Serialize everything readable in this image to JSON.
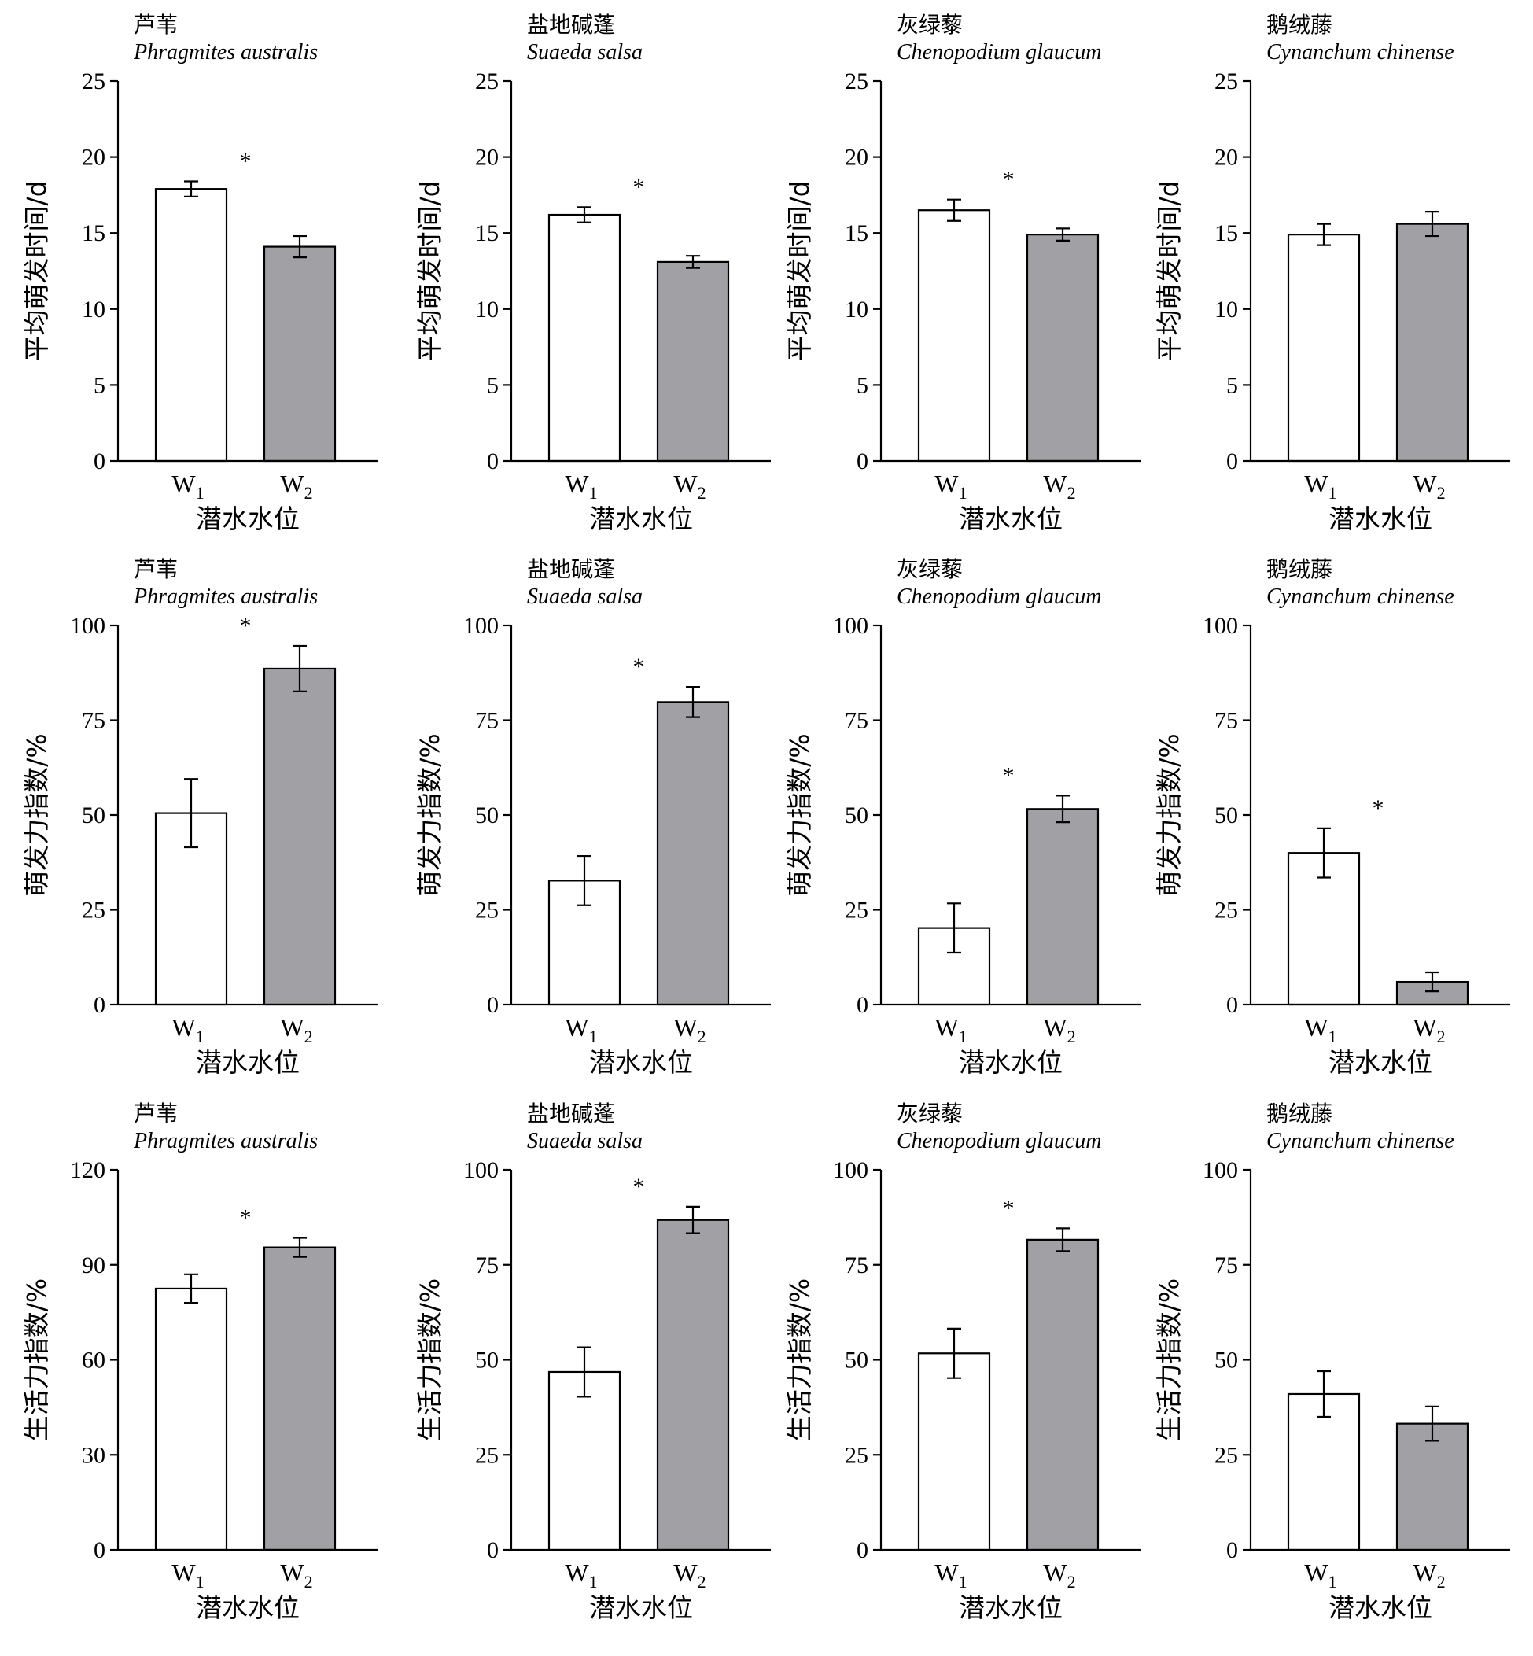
{
  "colors": {
    "W1": "#ffffff",
    "W2": "#a0a0a5",
    "stroke": "#000000"
  },
  "chart_data": [
    {
      "type": "bar",
      "title_cn": "芦苇",
      "title_latin": "Phragmites australis",
      "ylabel": "平均萌发时间/d",
      "xlabel": "潜水水位",
      "categories": [
        {
          "main": "W",
          "sub": "1"
        },
        {
          "main": "W",
          "sub": "2"
        }
      ],
      "values": [
        17.9,
        14.1
      ],
      "errors": [
        0.5,
        0.7
      ],
      "ylim": [
        0,
        25
      ],
      "yticks": [
        0,
        5,
        10,
        15,
        20,
        25
      ],
      "significant": true
    },
    {
      "type": "bar",
      "title_cn": "盐地碱蓬",
      "title_latin": "Suaeda salsa",
      "ylabel": "平均萌发时间/d",
      "xlabel": "潜水水位",
      "categories": [
        {
          "main": "W",
          "sub": "1"
        },
        {
          "main": "W",
          "sub": "2"
        }
      ],
      "values": [
        16.2,
        13.1
      ],
      "errors": [
        0.5,
        0.4
      ],
      "ylim": [
        0,
        25
      ],
      "yticks": [
        0,
        5,
        10,
        15,
        20,
        25
      ],
      "significant": true
    },
    {
      "type": "bar",
      "title_cn": "灰绿藜",
      "title_latin": "Chenopodium glaucum",
      "ylabel": "平均萌发时间/d",
      "xlabel": "潜水水位",
      "categories": [
        {
          "main": "W",
          "sub": "1"
        },
        {
          "main": "W",
          "sub": "2"
        }
      ],
      "values": [
        16.5,
        14.9
      ],
      "errors": [
        0.7,
        0.4
      ],
      "ylim": [
        0,
        25
      ],
      "yticks": [
        0,
        5,
        10,
        15,
        20,
        25
      ],
      "significant": true
    },
    {
      "type": "bar",
      "title_cn": "鹅绒藤",
      "title_latin": "Cynanchum chinense",
      "ylabel": "平均萌发时间/d",
      "xlabel": "潜水水位",
      "categories": [
        {
          "main": "W",
          "sub": "1"
        },
        {
          "main": "W",
          "sub": "2"
        }
      ],
      "values": [
        14.9,
        15.6
      ],
      "errors": [
        0.7,
        0.8
      ],
      "ylim": [
        0,
        25
      ],
      "yticks": [
        0,
        5,
        10,
        15,
        20,
        25
      ],
      "significant": false
    },
    {
      "type": "bar",
      "title_cn": "芦苇",
      "title_latin": "Phragmites australis",
      "ylabel": "萌发力指数/%",
      "xlabel": "潜水水位",
      "categories": [
        {
          "main": "W",
          "sub": "1"
        },
        {
          "main": "W",
          "sub": "2"
        }
      ],
      "values": [
        50.5,
        88.6
      ],
      "errors": [
        9,
        6
      ],
      "ylim": [
        0,
        100
      ],
      "yticks": [
        0,
        25,
        50,
        75,
        100
      ],
      "significant": true
    },
    {
      "type": "bar",
      "title_cn": "盐地碱蓬",
      "title_latin": "Suaeda salsa",
      "ylabel": "萌发力指数/%",
      "xlabel": "潜水水位",
      "categories": [
        {
          "main": "W",
          "sub": "1"
        },
        {
          "main": "W",
          "sub": "2"
        }
      ],
      "values": [
        32.7,
        79.8
      ],
      "errors": [
        6.5,
        4
      ],
      "ylim": [
        0,
        100
      ],
      "yticks": [
        0,
        25,
        50,
        75,
        100
      ],
      "significant": true
    },
    {
      "type": "bar",
      "title_cn": "灰绿藜",
      "title_latin": "Chenopodium glaucum",
      "ylabel": "萌发力指数/%",
      "xlabel": "潜水水位",
      "categories": [
        {
          "main": "W",
          "sub": "1"
        },
        {
          "main": "W",
          "sub": "2"
        }
      ],
      "values": [
        20.2,
        51.6
      ],
      "errors": [
        6.5,
        3.5
      ],
      "ylim": [
        0,
        100
      ],
      "yticks": [
        0,
        25,
        50,
        75,
        100
      ],
      "significant": true
    },
    {
      "type": "bar",
      "title_cn": "鹅绒藤",
      "title_latin": "Cynanchum chinense",
      "ylabel": "萌发力指数/%",
      "xlabel": "潜水水位",
      "categories": [
        {
          "main": "W",
          "sub": "1"
        },
        {
          "main": "W",
          "sub": "2"
        }
      ],
      "values": [
        40,
        6
      ],
      "errors": [
        6.5,
        2.5
      ],
      "ylim": [
        0,
        100
      ],
      "yticks": [
        0,
        25,
        50,
        75,
        100
      ],
      "significant": true
    },
    {
      "type": "bar",
      "title_cn": "芦苇",
      "title_latin": "Phragmites australis",
      "ylabel": "生活力指数/%",
      "xlabel": "潜水水位",
      "categories": [
        {
          "main": "W",
          "sub": "1"
        },
        {
          "main": "W",
          "sub": "2"
        }
      ],
      "values": [
        82.5,
        95.5
      ],
      "errors": [
        4.5,
        3
      ],
      "ylim": [
        0,
        120
      ],
      "yticks": [
        0,
        30,
        60,
        90,
        120
      ],
      "significant": true
    },
    {
      "type": "bar",
      "title_cn": "盐地碱蓬",
      "title_latin": "Suaeda salsa",
      "ylabel": "生活力指数/%",
      "xlabel": "潜水水位",
      "categories": [
        {
          "main": "W",
          "sub": "1"
        },
        {
          "main": "W",
          "sub": "2"
        }
      ],
      "values": [
        46.8,
        86.8
      ],
      "errors": [
        6.5,
        3.5
      ],
      "ylim": [
        0,
        100
      ],
      "yticks": [
        0,
        25,
        50,
        75,
        100
      ],
      "significant": true
    },
    {
      "type": "bar",
      "title_cn": "灰绿藜",
      "title_latin": "Chenopodium glaucum",
      "ylabel": "生活力指数/%",
      "xlabel": "潜水水位",
      "categories": [
        {
          "main": "W",
          "sub": "1"
        },
        {
          "main": "W",
          "sub": "2"
        }
      ],
      "values": [
        51.7,
        81.6
      ],
      "errors": [
        6.5,
        3
      ],
      "ylim": [
        0,
        100
      ],
      "yticks": [
        0,
        25,
        50,
        75,
        100
      ],
      "significant": true
    },
    {
      "type": "bar",
      "title_cn": "鹅绒藤",
      "title_latin": "Cynanchum chinense",
      "ylabel": "生活力指数/%",
      "xlabel": "潜水水位",
      "categories": [
        {
          "main": "W",
          "sub": "1"
        },
        {
          "main": "W",
          "sub": "2"
        }
      ],
      "values": [
        41,
        33.2
      ],
      "errors": [
        6,
        4.5
      ],
      "ylim": [
        0,
        100
      ],
      "yticks": [
        0,
        25,
        50,
        75,
        100
      ],
      "significant": false
    }
  ],
  "significance_marker": "*"
}
